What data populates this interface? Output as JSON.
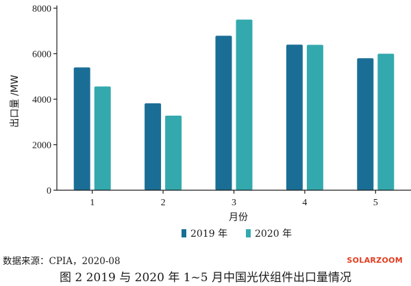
{
  "chart_data": {
    "type": "bar",
    "categories": [
      "1",
      "2",
      "3",
      "4",
      "5"
    ],
    "series": [
      {
        "name": "2019 年",
        "color": "#1a6e96",
        "values": [
          5400,
          3820,
          6790,
          6400,
          5800
        ]
      },
      {
        "name": "2020 年",
        "color": "#33a9ae",
        "values": [
          4560,
          3280,
          7500,
          6390,
          6000
        ]
      }
    ],
    "yticks": [
      0,
      2000,
      4000,
      6000,
      8000
    ],
    "ylim": [
      0,
      8000
    ],
    "xlabel": "月份",
    "ylabel": "出口量 /MW",
    "grid": false,
    "legend_position": "bottom"
  },
  "source_note": "数据来源：CPIA，2020-08",
  "caption": "图 2  2019 与 2020 年 1~5 月中国光伏组件出口量情况",
  "watermark": "SOLARZOOM"
}
